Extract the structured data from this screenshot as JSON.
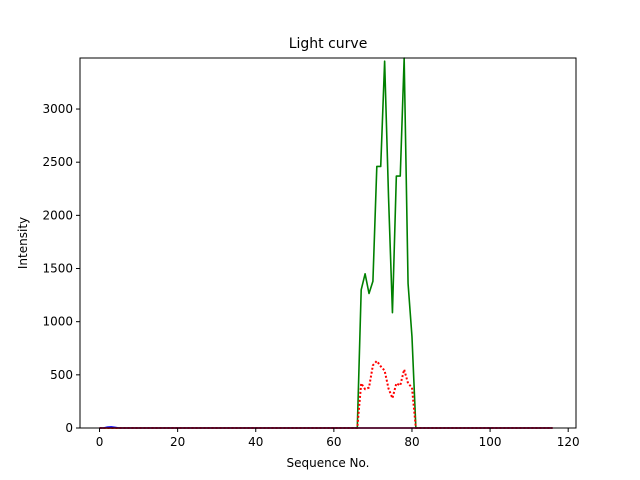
{
  "chart_data": {
    "type": "line",
    "title": "Light curve",
    "xlabel": "Sequence No.",
    "ylabel": "Intensity",
    "xlim": [
      -5,
      122
    ],
    "ylim": [
      0,
      3480
    ],
    "xticks": [
      0,
      20,
      40,
      60,
      80,
      100,
      120
    ],
    "yticks": [
      0,
      500,
      1000,
      1500,
      2000,
      2500,
      3000
    ],
    "grid": false,
    "series": [
      {
        "color": "#008000",
        "style": "solid",
        "points": [
          [
            0,
            0
          ],
          [
            66,
            0
          ],
          [
            67,
            1300
          ],
          [
            68,
            1450
          ],
          [
            69,
            1265
          ],
          [
            70,
            1380
          ],
          [
            71,
            2460
          ],
          [
            72,
            2460
          ],
          [
            73,
            3450
          ],
          [
            74,
            2170
          ],
          [
            75,
            1085
          ],
          [
            76,
            2370
          ],
          [
            77,
            2370
          ],
          [
            78,
            3480
          ],
          [
            79,
            1360
          ],
          [
            80,
            860
          ],
          [
            81,
            0
          ],
          [
            116,
            0
          ]
        ]
      },
      {
        "color": "#ff0000",
        "style": "dotted",
        "points": [
          [
            0,
            0
          ],
          [
            66,
            0
          ],
          [
            67,
            420
          ],
          [
            68,
            365
          ],
          [
            69,
            380
          ],
          [
            70,
            590
          ],
          [
            71,
            630
          ],
          [
            72,
            580
          ],
          [
            73,
            540
          ],
          [
            74,
            370
          ],
          [
            75,
            280
          ],
          [
            76,
            420
          ],
          [
            77,
            400
          ],
          [
            78,
            550
          ],
          [
            79,
            420
          ],
          [
            80,
            380
          ],
          [
            81,
            0
          ],
          [
            116,
            0
          ]
        ]
      },
      {
        "color": "#0000ff",
        "style": "solid",
        "points": [
          [
            0,
            0
          ],
          [
            1,
            0
          ],
          [
            2,
            8
          ],
          [
            3,
            10
          ],
          [
            4,
            6
          ],
          [
            5,
            0
          ],
          [
            116,
            0
          ]
        ]
      },
      {
        "color": "#ff0000",
        "style": "solid",
        "points": [
          [
            0,
            0
          ],
          [
            116,
            0
          ]
        ]
      }
    ]
  }
}
